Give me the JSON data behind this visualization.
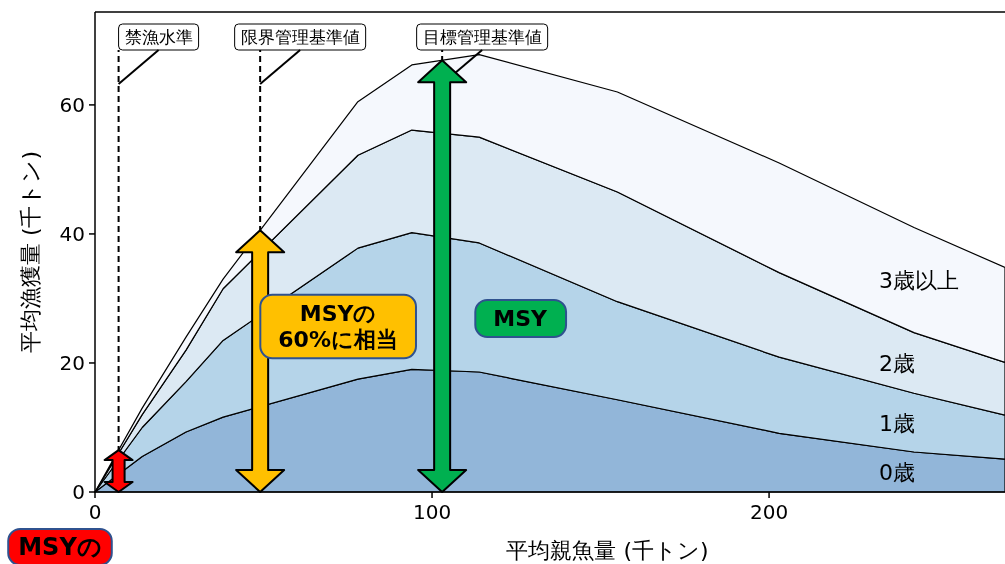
{
  "chart_data": {
    "type": "area",
    "stacked": true,
    "xlabel": "平均親魚量 (千トン)",
    "ylabel": "平均漁獲量 (千トン)",
    "x": [
      0,
      14,
      27,
      38,
      78,
      94,
      114,
      155,
      203,
      243,
      270
    ],
    "series": [
      {
        "name": "0歳",
        "color": "#92b6d9",
        "values": [
          0,
          5.5,
          9.3,
          11.6,
          17.5,
          19,
          18.6,
          14.3,
          9.1,
          6.2,
          5.1
        ]
      },
      {
        "name": "1歳",
        "color": "#b5d4e9",
        "values": [
          0,
          4.5,
          7.8,
          11.9,
          20.3,
          21.2,
          20,
          15.2,
          11.8,
          9.1,
          6.8
        ]
      },
      {
        "name": "2歳",
        "color": "#dce9f3",
        "values": [
          0,
          2,
          4.9,
          8,
          14.4,
          15.9,
          16.4,
          17,
          13.1,
          9.4,
          8.2
        ]
      },
      {
        "name": "3歳以上",
        "color": "#f5f8fd",
        "values": [
          0,
          1,
          2,
          1.5,
          8.3,
          10.1,
          12.8,
          15.5,
          17,
          16.3,
          14.7
        ]
      }
    ],
    "xlim": [
      0,
      270
    ],
    "ylim": [
      0,
      74.4
    ],
    "xticks": [
      0,
      100,
      200
    ],
    "yticks": [
      0,
      20,
      40,
      60
    ],
    "ref_lines": [
      {
        "axis": "x",
        "value": 7,
        "label": "禁漁水準",
        "line_style": "dashed"
      },
      {
        "axis": "x",
        "value": 49,
        "label": "限界管理基準値",
        "line_style": "dashed"
      },
      {
        "axis": "x",
        "value": 103,
        "label": "目標管理基準値",
        "line_style": "dashed"
      }
    ],
    "annotations": [
      "MSYの",
      "MSYの\n60%に相当",
      "MSY"
    ]
  }
}
